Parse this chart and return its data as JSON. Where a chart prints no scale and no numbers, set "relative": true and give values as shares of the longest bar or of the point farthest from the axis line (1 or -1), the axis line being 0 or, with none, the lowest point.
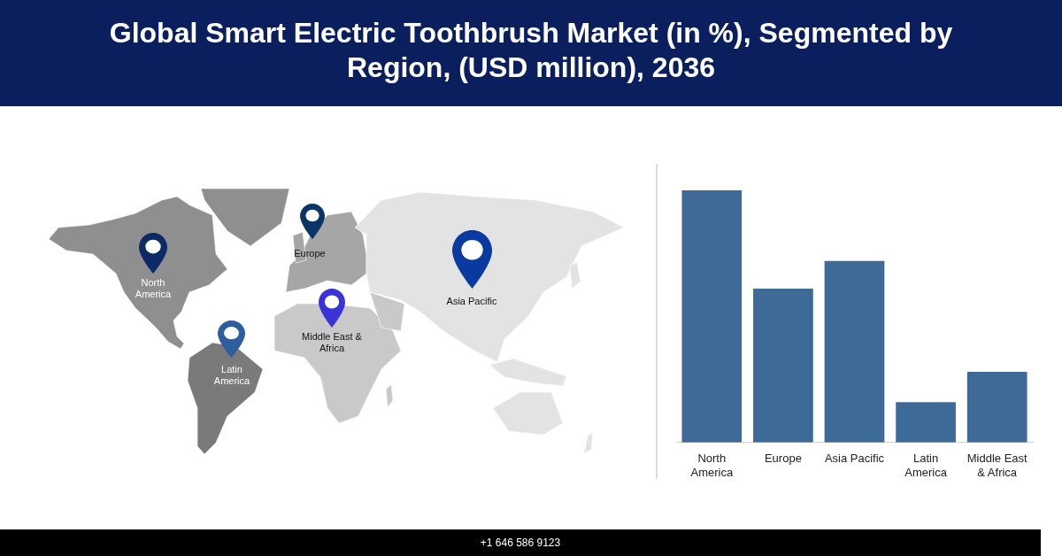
{
  "chart_data": {
    "type": "bar",
    "title": "Global Smart Electric Toothbrush Market (in %), Segmented by Region, (USD million), 2036",
    "categories": [
      "North America",
      "Europe",
      "Asia Pacific",
      "Latin America",
      "Middle East & Africa"
    ],
    "values": [
      1,
      0.61,
      0.72,
      0.16,
      0.28
    ],
    "color": "#3e6a97",
    "relative": true,
    "annotations": [
      "+1 646 586 9123"
    ]
  }
}
